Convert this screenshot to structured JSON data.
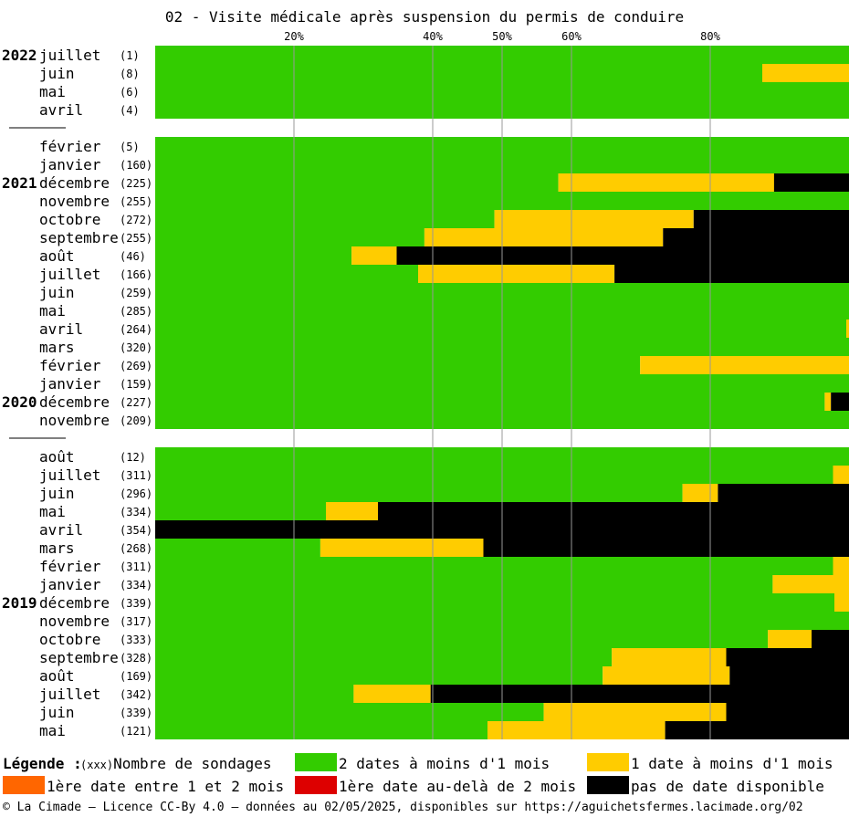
{
  "title": "02 - Visite médicale après suspension du permis de conduire",
  "colors": {
    "green": "#33cc00",
    "yellow": "#ffcc00",
    "orange": "#ff6600",
    "red": "#dd0000",
    "black": "#000000",
    "grid": "#999999"
  },
  "chart_data": {
    "type": "bar",
    "orientation": "horizontal",
    "stacked": true,
    "xlim": [
      0,
      100
    ],
    "x_ticks": [
      "20%",
      "40%",
      "50%",
      "60%",
      "80%"
    ],
    "x_tick_values": [
      20,
      40,
      50,
      60,
      80
    ],
    "series": [
      {
        "name": "2 dates à moins d'1 mois",
        "color": "#33cc00"
      },
      {
        "name": "1 date à moins d'1 mois",
        "color": "#ffcc00"
      },
      {
        "name": "1ère date entre 1 et 2 mois",
        "color": "#ff6600"
      },
      {
        "name": "1ère date au-delà de 2 mois",
        "color": "#dd0000"
      },
      {
        "name": "pas de date disponible",
        "color": "#000000"
      }
    ],
    "groups": [
      {
        "rows": [
          {
            "year": "2022",
            "month": "juillet",
            "count": "(1)",
            "values": [
              100,
              0,
              0,
              0,
              0
            ]
          },
          {
            "year": "",
            "month": "juin",
            "count": "(8)",
            "values": [
              87.5,
              12.5,
              0,
              0,
              0
            ]
          },
          {
            "year": "",
            "month": "mai",
            "count": "(6)",
            "values": [
              100,
              0,
              0,
              0,
              0
            ]
          },
          {
            "year": "",
            "month": "avril",
            "count": "(4)",
            "values": [
              100,
              0,
              0,
              0,
              0
            ]
          }
        ]
      },
      {
        "rows": [
          {
            "year": "",
            "month": "février",
            "count": "(5)",
            "values": [
              100,
              0,
              0,
              0,
              0
            ]
          },
          {
            "year": "",
            "month": "janvier",
            "count": "(160)",
            "values": [
              100,
              0,
              0,
              0,
              0
            ]
          },
          {
            "year": "2021",
            "month": "décembre",
            "count": "(225)",
            "values": [
              58.1,
              31.1,
              0,
              0,
              10.8
            ]
          },
          {
            "year": "",
            "month": "novembre",
            "count": "(255)",
            "values": [
              100,
              0,
              0,
              0,
              0
            ]
          },
          {
            "year": "",
            "month": "octobre",
            "count": "(272)",
            "values": [
              48.9,
              28.7,
              0,
              0,
              22.4
            ]
          },
          {
            "year": "",
            "month": "septembre",
            "count": "(255)",
            "values": [
              38.8,
              34.4,
              0,
              0,
              26.8
            ]
          },
          {
            "year": "",
            "month": "août",
            "count": "(46)",
            "values": [
              28.3,
              6.5,
              0,
              0,
              65.2
            ]
          },
          {
            "year": "",
            "month": "juillet",
            "count": "(166)",
            "values": [
              37.9,
              28.3,
              0,
              0,
              33.8
            ]
          },
          {
            "year": "",
            "month": "juin",
            "count": "(259)",
            "values": [
              100,
              0,
              0,
              0,
              0
            ]
          },
          {
            "year": "",
            "month": "mai",
            "count": "(285)",
            "values": [
              100,
              0,
              0,
              0,
              0
            ]
          },
          {
            "year": "",
            "month": "avril",
            "count": "(264)",
            "values": [
              99.6,
              0.4,
              0,
              0,
              0
            ]
          },
          {
            "year": "",
            "month": "mars",
            "count": "(320)",
            "values": [
              100,
              0,
              0,
              0,
              0
            ]
          },
          {
            "year": "",
            "month": "février",
            "count": "(269)",
            "values": [
              69.9,
              30.1,
              0,
              0,
              0
            ]
          },
          {
            "year": "",
            "month": "janvier",
            "count": "(159)",
            "values": [
              100,
              0,
              0,
              0,
              0
            ]
          },
          {
            "year": "2020",
            "month": "décembre",
            "count": "(227)",
            "values": [
              96.5,
              0.9,
              0,
              0,
              2.6
            ]
          },
          {
            "year": "",
            "month": "novembre",
            "count": "(209)",
            "values": [
              100,
              0,
              0,
              0,
              0
            ]
          }
        ]
      },
      {
        "rows": [
          {
            "year": "",
            "month": "août",
            "count": "(12)",
            "values": [
              100,
              0,
              0,
              0,
              0
            ]
          },
          {
            "year": "",
            "month": "juillet",
            "count": "(311)",
            "values": [
              97.7,
              2.3,
              0,
              0,
              0
            ]
          },
          {
            "year": "",
            "month": "juin",
            "count": "(296)",
            "values": [
              76.0,
              5.1,
              0,
              0,
              18.9
            ]
          },
          {
            "year": "",
            "month": "mai",
            "count": "(334)",
            "values": [
              24.6,
              7.5,
              0,
              0,
              67.9
            ]
          },
          {
            "year": "",
            "month": "avril",
            "count": "(354)",
            "values": [
              0,
              0,
              0,
              0,
              100
            ]
          },
          {
            "year": "",
            "month": "mars",
            "count": "(268)",
            "values": [
              23.8,
              23.5,
              0,
              0,
              52.7
            ]
          },
          {
            "year": "",
            "month": "février",
            "count": "(311)",
            "values": [
              97.7,
              2.3,
              0,
              0,
              0
            ]
          },
          {
            "year": "",
            "month": "janvier",
            "count": "(334)",
            "values": [
              89.0,
              11.0,
              0,
              0,
              0
            ]
          },
          {
            "year": "2019",
            "month": "décembre",
            "count": "(339)",
            "values": [
              97.9,
              2.1,
              0,
              0,
              0
            ]
          },
          {
            "year": "",
            "month": "novembre",
            "count": "(317)",
            "values": [
              100,
              0,
              0,
              0,
              0
            ]
          },
          {
            "year": "",
            "month": "octobre",
            "count": "(333)",
            "values": [
              88.3,
              6.3,
              0,
              0,
              5.4
            ]
          },
          {
            "year": "",
            "month": "septembre",
            "count": "(328)",
            "values": [
              65.8,
              16.5,
              0,
              0,
              17.7
            ]
          },
          {
            "year": "",
            "month": "août",
            "count": "(169)",
            "values": [
              64.5,
              18.3,
              0,
              0,
              17.2
            ]
          },
          {
            "year": "",
            "month": "juillet",
            "count": "(342)",
            "values": [
              28.6,
              11.1,
              0,
              0,
              60.3
            ]
          },
          {
            "year": "",
            "month": "juin",
            "count": "(339)",
            "values": [
              56.0,
              26.3,
              0,
              0,
              17.7
            ]
          },
          {
            "year": "",
            "month": "mai",
            "count": "(121)",
            "values": [
              47.9,
              25.6,
              0,
              0,
              26.5
            ]
          }
        ]
      }
    ]
  },
  "legend": {
    "title": "Légende :",
    "unit_sample": "(xxx)",
    "unit_label": "Nombre de sondages"
  },
  "footer": "© La Cimade – Licence CC-By 4.0 – données au 02/05/2025, disponibles sur https://aguichetsfermes.lacimade.org/02"
}
